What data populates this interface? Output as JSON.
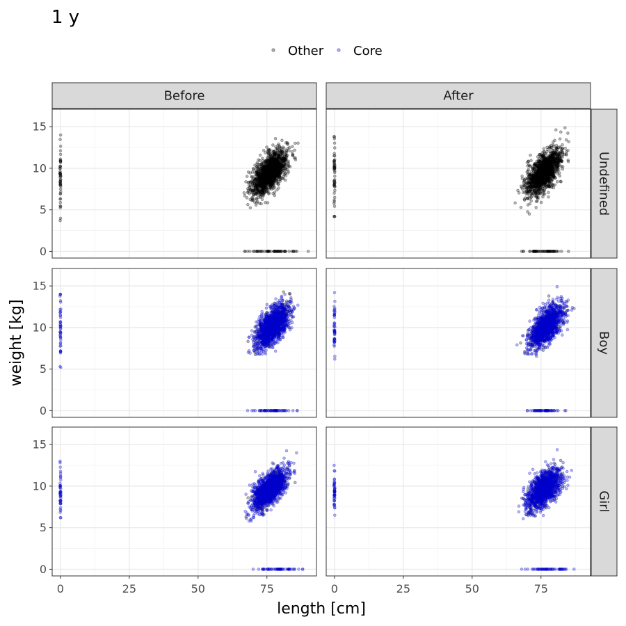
{
  "chart_data": {
    "type": "scatter",
    "title": "1 y",
    "xlabel": "length [cm]",
    "ylabel": "weight [kg]",
    "xlim": [
      -3,
      93
    ],
    "ylim": [
      -0.8,
      17.1
    ],
    "x_ticks": [
      0,
      25,
      50,
      75
    ],
    "y_ticks": [
      0,
      5,
      10,
      15
    ],
    "grid": true,
    "legend": {
      "position": "top",
      "entries": [
        {
          "label": "Other",
          "color": "#000000"
        },
        {
          "label": "Core",
          "color": "#0000cc"
        }
      ]
    },
    "facet_columns": [
      "Before",
      "After"
    ],
    "facet_rows": [
      "Undefined",
      "Boy",
      "Girl"
    ],
    "panels": [
      {
        "row": "Undefined",
        "col": "Before",
        "clusters": [
          {
            "series": "Other",
            "kind": "cloud",
            "center": [
              76,
              9.5
            ],
            "sx": 3.2,
            "sy": 1.35,
            "rho": 0.62,
            "n": 1400,
            "x_range": [
              63,
              88
            ],
            "y_range": [
              4.5,
              15.5
            ]
          },
          {
            "series": "Other",
            "kind": "vertical",
            "x": 0,
            "y_range": [
              3.7,
              14
            ],
            "n": 50
          },
          {
            "series": "Other",
            "kind": "horizontal",
            "y": 0,
            "x_range": [
              67,
              90
            ],
            "n": 60
          }
        ]
      },
      {
        "row": "Undefined",
        "col": "After",
        "clusters": [
          {
            "series": "Other",
            "kind": "cloud",
            "center": [
              76,
              9.5
            ],
            "sx": 3.2,
            "sy": 1.35,
            "rho": 0.62,
            "n": 1400,
            "x_range": [
              63,
              87
            ],
            "y_range": [
              4.5,
              15.5
            ]
          },
          {
            "series": "Other",
            "kind": "vertical",
            "x": 0,
            "y_range": [
              4.2,
              13.8
            ],
            "n": 50
          },
          {
            "series": "Other",
            "kind": "horizontal",
            "y": 0,
            "x_range": [
              68,
              85
            ],
            "n": 60
          }
        ]
      },
      {
        "row": "Boy",
        "col": "Before",
        "clusters": [
          {
            "series": "Other",
            "kind": "cloud",
            "center": [
              77,
              10.2
            ],
            "sx": 3.2,
            "sy": 1.3,
            "rho": 0.62,
            "n": 200,
            "x_range": [
              64,
              87
            ],
            "y_range": [
              6.5,
              16
            ]
          },
          {
            "series": "Core",
            "kind": "cloud",
            "center": [
              77,
              10.2
            ],
            "sx": 3.0,
            "sy": 1.25,
            "rho": 0.62,
            "n": 1300,
            "x_range": [
              66,
              87
            ],
            "y_range": [
              6.8,
              16.2
            ]
          },
          {
            "series": "Core",
            "kind": "vertical",
            "x": 0,
            "y_range": [
              5.2,
              14
            ],
            "n": 45
          },
          {
            "series": "Core",
            "kind": "horizontal",
            "y": 0,
            "x_range": [
              68,
              86
            ],
            "n": 60
          }
        ]
      },
      {
        "row": "Boy",
        "col": "After",
        "clusters": [
          {
            "series": "Other",
            "kind": "cloud",
            "center": [
              77,
              10.2
            ],
            "sx": 3.2,
            "sy": 1.3,
            "rho": 0.62,
            "n": 150,
            "x_range": [
              64,
              87
            ],
            "y_range": [
              6.5,
              16
            ]
          },
          {
            "series": "Core",
            "kind": "cloud",
            "center": [
              77,
              10.2
            ],
            "sx": 3.0,
            "sy": 1.25,
            "rho": 0.62,
            "n": 1300,
            "x_range": [
              66,
              87
            ],
            "y_range": [
              6.8,
              16.2
            ]
          },
          {
            "series": "Core",
            "kind": "vertical",
            "x": 0,
            "y_range": [
              6.2,
              14.2
            ],
            "n": 45
          },
          {
            "series": "Core",
            "kind": "horizontal",
            "y": 0,
            "x_range": [
              70,
              84
            ],
            "n": 60
          }
        ]
      },
      {
        "row": "Girl",
        "col": "Before",
        "clusters": [
          {
            "series": "Other",
            "kind": "cloud",
            "center": [
              76,
              9.6
            ],
            "sx": 3.1,
            "sy": 1.25,
            "rho": 0.62,
            "n": 200,
            "x_range": [
              64,
              87
            ],
            "y_range": [
              5.8,
              15.2
            ]
          },
          {
            "series": "Core",
            "kind": "cloud",
            "center": [
              76,
              9.6
            ],
            "sx": 3.0,
            "sy": 1.2,
            "rho": 0.62,
            "n": 1300,
            "x_range": [
              66,
              88
            ],
            "y_range": [
              5.8,
              15
            ]
          },
          {
            "series": "Core",
            "kind": "vertical",
            "x": 0,
            "y_range": [
              6.2,
              13
            ],
            "n": 45
          },
          {
            "series": "Core",
            "kind": "horizontal",
            "y": 0,
            "x_range": [
              70,
              88
            ],
            "n": 60
          }
        ]
      },
      {
        "row": "Girl",
        "col": "After",
        "clusters": [
          {
            "series": "Other",
            "kind": "cloud",
            "center": [
              76,
              9.6
            ],
            "sx": 3.1,
            "sy": 1.25,
            "rho": 0.62,
            "n": 150,
            "x_range": [
              64,
              87
            ],
            "y_range": [
              5.8,
              15.2
            ]
          },
          {
            "series": "Core",
            "kind": "cloud",
            "center": [
              76,
              9.6
            ],
            "sx": 3.0,
            "sy": 1.2,
            "rho": 0.62,
            "n": 1300,
            "x_range": [
              66,
              87
            ],
            "y_range": [
              5.8,
              15
            ]
          },
          {
            "series": "Core",
            "kind": "vertical",
            "x": 0,
            "y_range": [
              6.5,
              12.5
            ],
            "n": 45
          },
          {
            "series": "Core",
            "kind": "horizontal",
            "y": 0,
            "x_range": [
              68,
              87
            ],
            "n": 60
          }
        ]
      }
    ]
  }
}
